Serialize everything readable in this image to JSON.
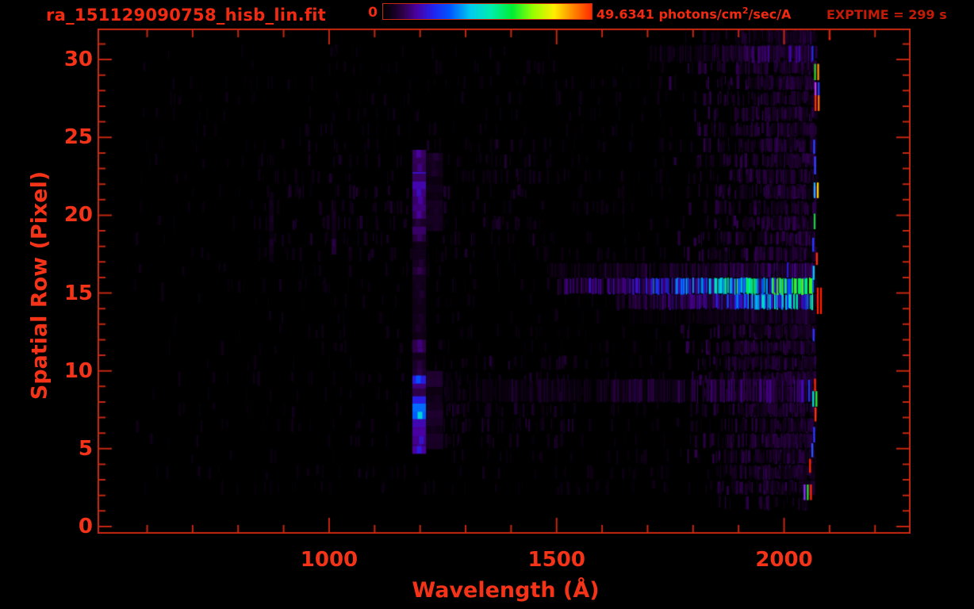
{
  "header": {
    "filename": "ra_151129090758_hisb_lin.fit",
    "exptime": "EXPTIME = 299 s"
  },
  "colorbar": {
    "min_label": "0",
    "max_label_pre": "49.6341 photons/cm",
    "max_label_sup": "2",
    "max_label_post": "/sec/A"
  },
  "colors": {
    "background": "#000000",
    "title_text": "#f32a12",
    "exptime_text": "#c21c08",
    "axis_text": "#f53318",
    "frame": "#c5270f"
  },
  "chart_data": {
    "type": "heatmap",
    "title": "ra_151129090758_hisb_lin.fit",
    "xlabel": "Wavelength (Å)",
    "ylabel": "Spatial Row (Pixel)",
    "x_axis": {
      "range": [
        491,
        2278
      ],
      "major_ticks": [
        1000,
        1500,
        2000
      ],
      "minor_tick_step": 100,
      "unit": "Å"
    },
    "y_axis": {
      "range": [
        -0.5,
        32
      ],
      "major_ticks": [
        0,
        5,
        10,
        15,
        20,
        25,
        30
      ],
      "minor_tick_step": 1,
      "unit": "pixel"
    },
    "value_scale": {
      "min": 0,
      "max": 49.6341,
      "units": "photons/cm²/sec/A",
      "scaling": "linear"
    },
    "exposure_seconds": 299,
    "seed": 20151129,
    "colormap_stops": [
      [
        0,
        "#000000"
      ],
      [
        0.05,
        "#14001e"
      ],
      [
        0.1,
        "#30004e"
      ],
      [
        0.16,
        "#4a00a0"
      ],
      [
        0.24,
        "#2222ee"
      ],
      [
        0.32,
        "#0055ff"
      ],
      [
        0.42,
        "#00ccee"
      ],
      [
        0.52,
        "#00eeaa"
      ],
      [
        0.62,
        "#00ee33"
      ],
      [
        0.72,
        "#99ff00"
      ],
      [
        0.82,
        "#ffee00"
      ],
      [
        0.91,
        "#ff8800"
      ],
      [
        1,
        "#ff2a00"
      ]
    ],
    "features": [
      {
        "kind": "noise",
        "name": "faint-left-speckle",
        "rows": [
          2,
          30.5
        ],
        "wl": [
          560,
          1750
        ],
        "count": 900,
        "intensity": [
          0.012,
          0.042
        ],
        "bias": 0.4
      },
      {
        "kind": "noise",
        "name": "mid-upper-speckle",
        "rows": [
          17,
          24.5
        ],
        "wl": [
          840,
          1480
        ],
        "count": 170,
        "intensity": [
          0.022,
          0.07
        ],
        "bias": 0
      },
      {
        "kind": "noise",
        "name": "mid-lower-speckle",
        "rows": [
          5.5,
          10.5
        ],
        "wl": [
          1240,
          1540
        ],
        "count": 120,
        "intensity": [
          0.025,
          0.075
        ],
        "bias": 0
      },
      {
        "kind": "noise",
        "name": "right-dense-speckle",
        "rows": [
          1.8,
          32
        ],
        "wl": [
          1740,
          2068
        ],
        "count": 3000,
        "intensity": [
          0.018,
          0.1
        ],
        "bias": 1.5
      },
      {
        "kind": "hband",
        "name": "row8-faint-streak",
        "rows": [
          8.0,
          9.45
        ],
        "wl": [
          1255,
          2062
        ],
        "i0": 0.026,
        "i1": 0.1,
        "gap": 0.38
      },
      {
        "kind": "hband",
        "name": "row30-streak",
        "rows": [
          29.85,
          30.9
        ],
        "wl": [
          1705,
          2062
        ],
        "i0": 0.028,
        "i1": 0.12,
        "gap": 0.42
      },
      {
        "kind": "hband",
        "name": "row31-faint-streak",
        "rows": [
          30.9,
          31.8
        ],
        "wl": [
          1850,
          2062
        ],
        "i0": 0.015,
        "i1": 0.05,
        "gap": 0.55
      },
      {
        "kind": "hband",
        "name": "row13-faint-streak",
        "rows": [
          13.0,
          13.95
        ],
        "wl": [
          1660,
          2058
        ],
        "i0": 0.016,
        "i1": 0.055,
        "gap": 0.5
      },
      {
        "kind": "hband",
        "name": "row17-faint-streak",
        "rows": [
          15.98,
          16.92
        ],
        "wl": [
          1485,
          2060
        ],
        "i0": 0.028,
        "i1": 0.1,
        "gap": 0.35
      },
      {
        "kind": "hband",
        "name": "secondary-bright-streak",
        "rows": [
          13.98,
          14.92
        ],
        "wl": [
          1630,
          2064
        ],
        "i0": 0.05,
        "i1": 0.4,
        "gap": 0.22,
        "cap": 0.5
      },
      {
        "kind": "hband",
        "name": "main-bright-streak",
        "rows": [
          14.95,
          15.95
        ],
        "wl": [
          1502,
          2064
        ],
        "i0": 0.07,
        "i1": 0.56,
        "gap": 0.16,
        "cap": 0.66
      },
      {
        "kind": "column_segments",
        "name": "lyman-alpha-emission-line",
        "wl": [
          1183,
          1213
        ],
        "segments": [
          {
            "rows": [
              23.3,
              24.2
            ],
            "i": 0.095
          },
          {
            "rows": [
              21.2,
              23.3
            ],
            "i": 0.14
          },
          {
            "rows": [
              18.3,
              21.2
            ],
            "i": 0.095
          },
          {
            "rows": [
              14.2,
              18.3
            ],
            "i": 0.05
          },
          {
            "rows": [
              12.0,
              14.2
            ],
            "i": 0.038
          },
          {
            "rows": [
              9.7,
              12.0
            ],
            "i": 0.07
          },
          {
            "rows": [
              7.9,
              9.7
            ],
            "i": 0.16
          },
          {
            "rows": [
              6.9,
              7.9
            ],
            "i": 0.26
          },
          {
            "rows": [
              5.8,
              6.9
            ],
            "i": 0.17
          },
          {
            "rows": [
              4.7,
              5.8
            ],
            "i": 0.115
          }
        ]
      },
      {
        "kind": "column_segments",
        "name": "lyman-alpha-halo",
        "wl": [
          1214,
          1250
        ],
        "segments": [
          {
            "rows": [
              19.0,
              24.0
            ],
            "i": 0.045
          },
          {
            "rows": [
              5.0,
              10.0
            ],
            "i": 0.05
          }
        ]
      },
      {
        "kind": "column_segments",
        "name": "faint-line-1010",
        "wl": [
          1005,
          1016
        ],
        "segments": [
          {
            "rows": [
              17.5,
              20.3
            ],
            "i": 0.05
          }
        ]
      },
      {
        "kind": "column_segments",
        "name": "faint-line-870",
        "wl": [
          868,
          878
        ],
        "segments": [
          {
            "rows": [
              17.0,
              21.5
            ],
            "i": 0.032
          }
        ]
      },
      {
        "kind": "edge_dashes",
        "name": "detector-edge-hot-pixels",
        "pixels": [
          {
            "row": 31.7,
            "wl": 2098,
            "colors": [
              "#ff2200"
            ],
            "h": 0.9
          },
          {
            "row": 29.2,
            "wl": 2066,
            "colors": [
              "#2fd01e",
              "#ff8800"
            ],
            "h": 1.05
          },
          {
            "row": 28.1,
            "wl": 2067,
            "colors": [
              "#c233ff",
              "#2936ff"
            ],
            "h": 0.9
          },
          {
            "row": 27.2,
            "wl": 2067,
            "colors": [
              "#ff2e00",
              "#ff6a00"
            ],
            "h": 1.0
          },
          {
            "row": 24.4,
            "wl": 2064,
            "colors": [
              "#2742ff"
            ],
            "h": 0.9
          },
          {
            "row": 23.2,
            "wl": 2066,
            "colors": [
              "#3340ff"
            ],
            "h": 1.15
          },
          {
            "row": 21.6,
            "wl": 2065,
            "colors": [
              "#27a8ff",
              "#ffcc00"
            ],
            "h": 1.0
          },
          {
            "row": 19.6,
            "wl": 2065,
            "colors": [
              "#21c943"
            ],
            "h": 1.0
          },
          {
            "row": 18.1,
            "wl": 2062,
            "colors": [
              "#2936ff"
            ],
            "h": 0.9
          },
          {
            "row": 17.2,
            "wl": 2070,
            "colors": [
              "#ff2a00"
            ],
            "h": 0.8
          },
          {
            "row": 16.3,
            "wl": 2063,
            "colors": [
              "#00c8ff"
            ],
            "h": 0.9
          },
          {
            "row": 14.5,
            "wl": 2072,
            "colors": [
              "#ff1e00",
              "#ff1e00"
            ],
            "h": 1.7
          },
          {
            "row": 12.3,
            "wl": 2063,
            "colors": [
              "#2936ff"
            ],
            "h": 0.8
          },
          {
            "row": 9.1,
            "wl": 2066,
            "colors": [
              "#ff2200"
            ],
            "h": 0.8
          },
          {
            "row": 8.2,
            "wl": 2062,
            "colors": [
              "#00d8c8",
              "#2fe52f"
            ],
            "h": 1.0
          },
          {
            "row": 7.2,
            "wl": 2067,
            "colors": [
              "#ff3300"
            ],
            "h": 0.9
          },
          {
            "row": 5.9,
            "wl": 2064,
            "colors": [
              "#2936ff"
            ],
            "h": 1.0
          },
          {
            "row": 4.9,
            "wl": 2060,
            "colors": [
              "#2a52ff"
            ],
            "h": 0.9
          },
          {
            "row": 3.9,
            "wl": 2055,
            "colors": [
              "#ff2200"
            ],
            "h": 0.9
          },
          {
            "row": 2.2,
            "wl": 2043,
            "colors": [
              "#8c2fff",
              "#26d42e",
              "#ff2200"
            ],
            "h": 1.0
          }
        ]
      }
    ]
  }
}
